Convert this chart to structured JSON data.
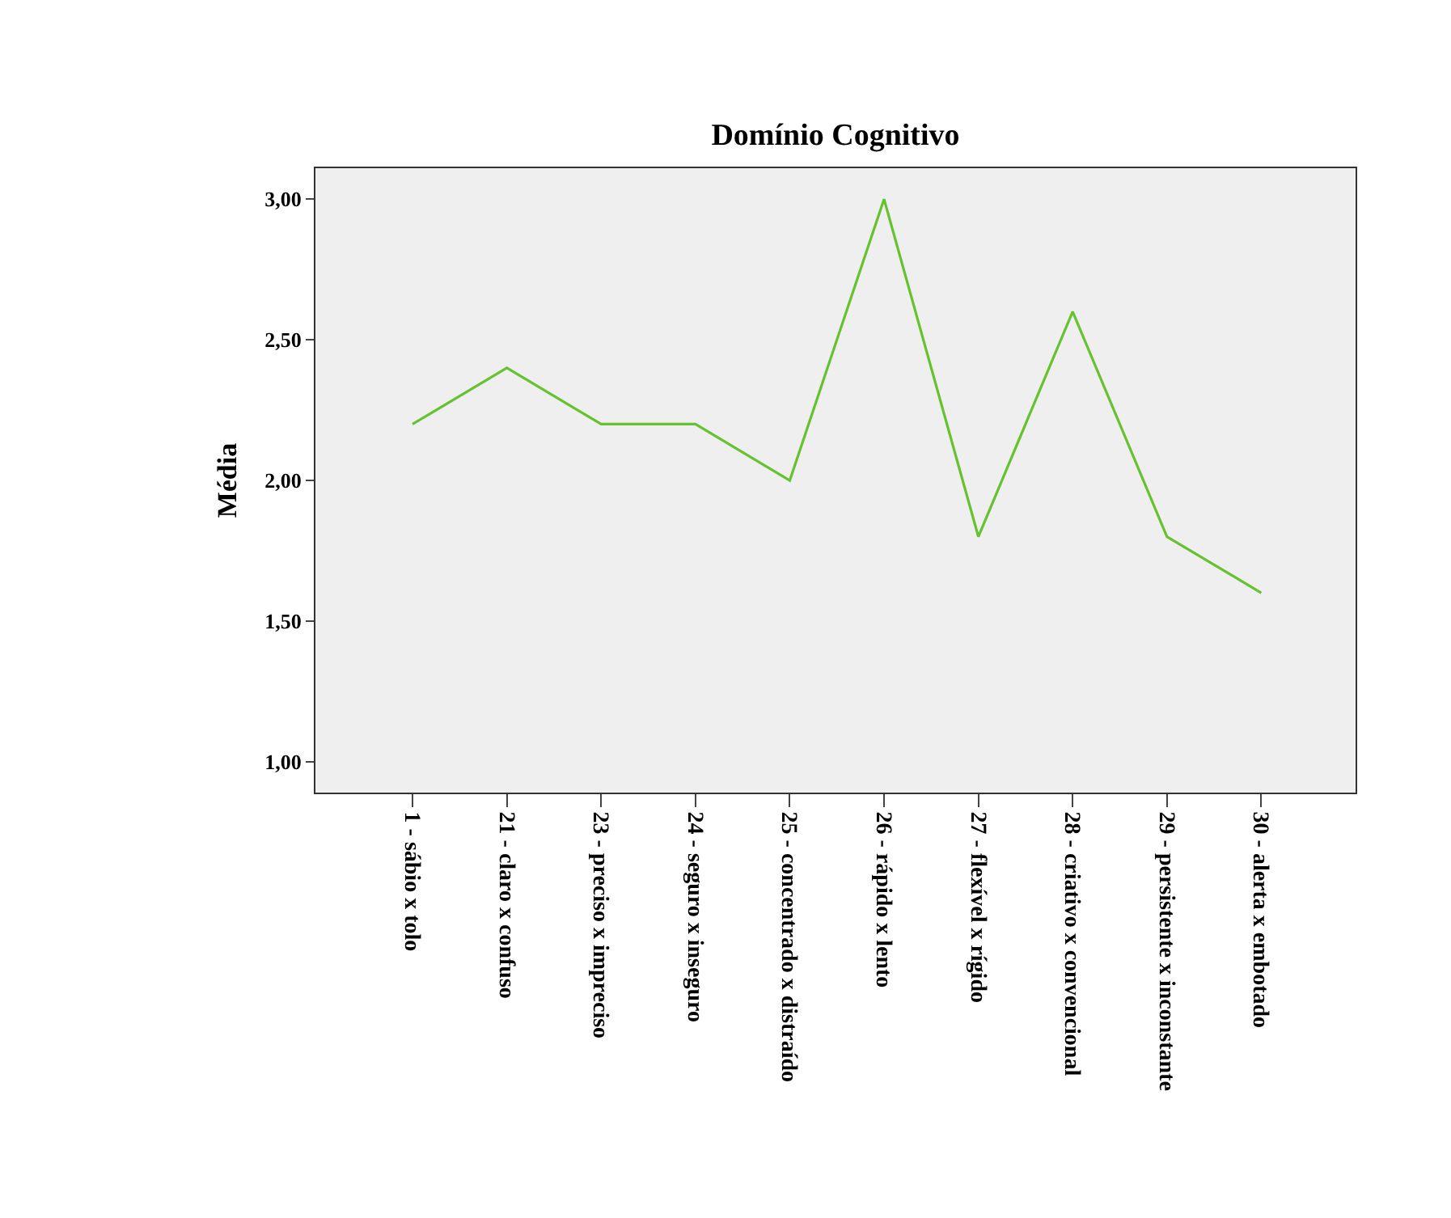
{
  "chart_data": {
    "type": "line",
    "title": "Domínio Cognitivo",
    "ylabel": "Média",
    "categories": [
      "1 - sábio x tolo",
      "21 - claro x confuso",
      "23 - preciso x impreciso",
      "24 - seguro x inseguro",
      "25 - concentrado x distraído",
      "26 - rápido x lento",
      "27 - flexível x rígido",
      "28 - criativo x convencional",
      "29 - persistente x inconstante",
      "30 - alerta x embotado"
    ],
    "series": [
      {
        "color": "#66c22e",
        "values": [
          2.2,
          2.4,
          2.2,
          2.2,
          2.0,
          3.0,
          1.8,
          2.6,
          1.8,
          1.6
        ]
      }
    ],
    "ylim": [
      0.89,
      3.11
    ],
    "yticks": [
      {
        "value": 1,
        "label": "1,00"
      },
      {
        "value": 1.5,
        "label": "1,50"
      },
      {
        "value": 2,
        "label": "2,00"
      },
      {
        "value": 2.5,
        "label": "2,50"
      },
      {
        "value": 3,
        "label": "3,00"
      }
    ],
    "grid": false,
    "marker": "none",
    "line_style": "solid"
  }
}
